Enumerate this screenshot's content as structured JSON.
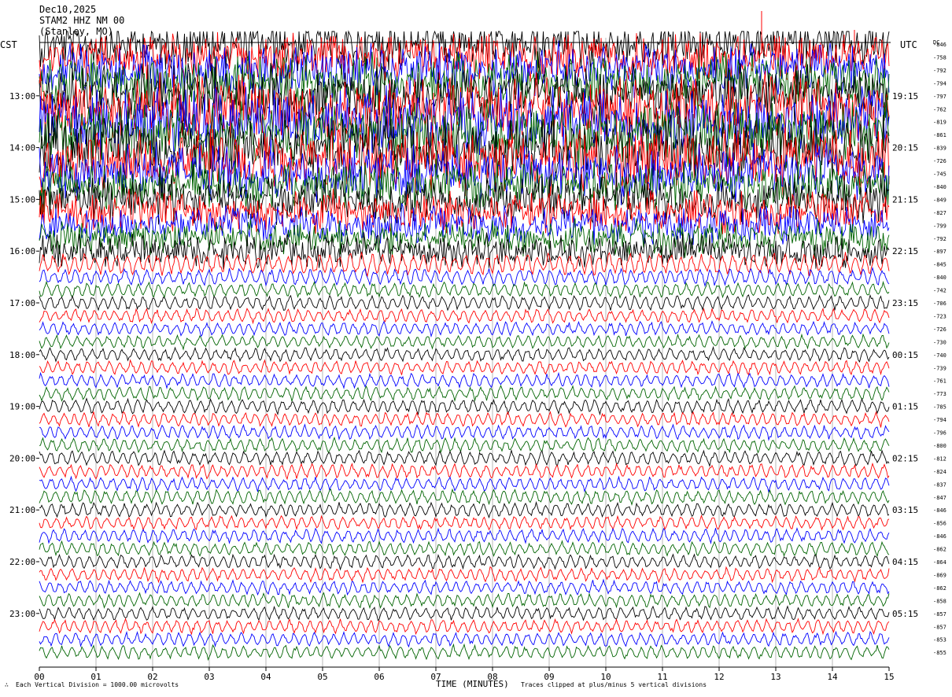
{
  "header": {
    "date": "Dec10,2025",
    "station": "STAM2 HHZ NM 00",
    "location": "(Stanley, MO)"
  },
  "left_zone": "CST",
  "right_zone": "UTC",
  "dc_label": "DC",
  "footer": {
    "scale": "Each Vertical Division = 1000.00 microvolts",
    "clip": "Traces clipped at plus/minus 5 vertical divisions",
    "mark": "∴"
  },
  "colors": {
    "black": "#000000",
    "red": "#ff0000",
    "blue": "#0000ff",
    "green": "#006400"
  },
  "chart_data": {
    "type": "line",
    "subtype": "helicorder",
    "xlabel": "TIME (MINUTES)",
    "x_ticks": [
      "00",
      "01",
      "02",
      "03",
      "04",
      "05",
      "06",
      "07",
      "08",
      "09",
      "10",
      "11",
      "12",
      "13",
      "14",
      "15"
    ],
    "xlim": [
      0,
      15
    ],
    "grid": "vertical lines at each minute",
    "trace_color_cycle": [
      "black",
      "red",
      "blue",
      "green"
    ],
    "left_time_labels": [
      "13:00",
      "14:00",
      "15:00",
      "16:00",
      "17:00",
      "18:00",
      "19:00",
      "20:00",
      "21:00",
      "22:00",
      "23:00"
    ],
    "right_time_labels": [
      "19:15",
      "20:15",
      "21:15",
      "22:15",
      "23:15",
      "00:15",
      "01:15",
      "02:15",
      "03:15",
      "04:15",
      "05:15"
    ],
    "dc_offsets": [
      -846,
      -758,
      -792,
      -794,
      -797,
      -762,
      -819,
      -861,
      -839,
      -726,
      -745,
      -840,
      -849,
      -827,
      -799,
      -792,
      -897,
      -845,
      -840,
      -742,
      -706,
      -723,
      -726,
      -730,
      -740,
      -739,
      -761,
      -773,
      -785,
      -794,
      -796,
      -800,
      -812,
      -824,
      -837,
      -847,
      -846,
      -856,
      -846,
      -862,
      -864,
      -869,
      -862,
      -858,
      -857,
      -857,
      -853,
      -855
    ],
    "relative_amplitude": [
      3.2,
      3.0,
      3.3,
      3.6,
      3.9,
      4.2,
      4.4,
      4.4,
      4.3,
      4.0,
      3.6,
      3.2,
      3.0,
      2.6,
      2.4,
      2.2,
      2.1,
      1.3,
      0.95,
      0.85,
      0.85,
      0.8,
      0.78,
      0.78,
      0.78,
      0.78,
      0.78,
      0.8,
      0.82,
      0.82,
      0.82,
      0.82,
      0.85,
      0.82,
      0.82,
      0.82,
      0.82,
      0.8,
      0.8,
      0.8,
      0.8,
      0.8,
      0.8,
      0.8,
      0.8,
      0.8,
      0.8,
      0.8
    ]
  }
}
